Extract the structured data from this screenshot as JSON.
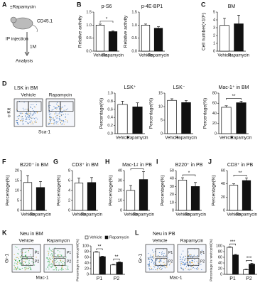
{
  "panel_labels": [
    "A",
    "B",
    "C",
    "D",
    "F",
    "G",
    "H",
    "I",
    "J",
    "K",
    "L"
  ],
  "diagram": {
    "treatment": "±Rapamycin",
    "strain": "CD45.1",
    "route": "IP injection",
    "duration": "1M",
    "endpoint": "Analysis"
  },
  "flow_plots": [
    {
      "title": "LSK in BM",
      "columns": [
        "Vehicle",
        "Rapamycin"
      ],
      "y_label": "c-Kit",
      "x_label": "Sca-1"
    },
    {
      "title": "Neu in BM",
      "columns": [
        "Vehicle",
        "Rapamycin"
      ],
      "y_label": "Gr-1",
      "x_label": "Mac-1",
      "gates": [
        "P1",
        "P2"
      ]
    },
    {
      "title": "Neu in PB",
      "columns": [
        "Vehicle",
        "Rapamycin"
      ],
      "y_label": "Gr-1",
      "x_label": "Mac-1",
      "gates": [
        "P1",
        "P2"
      ]
    }
  ],
  "chart_data": [
    {
      "type": "bar",
      "title": "p-S6",
      "ylabel": "Relative activity",
      "categories": [
        "Vehicle",
        "Rapamycin"
      ],
      "values": [
        1.0,
        0.75
      ],
      "errors": [
        0.04,
        0.03
      ],
      "colors": [
        "#ffffff",
        "#111111"
      ],
      "ylim": [
        0,
        1.5
      ],
      "yticks": [
        {
          "value": 0,
          "label": "0.0"
        },
        0.5,
        {
          "value": 1,
          "label": "1.0"
        },
        1.5
      ],
      "annotations": [
        "*"
      ]
    },
    {
      "type": "bar",
      "title": "p-4E-BP1",
      "ylabel": "Relative activity",
      "categories": [
        "Vehicle",
        "Rapamycin"
      ],
      "values": [
        1.0,
        0.88
      ],
      "errors": [
        0.04,
        0.06
      ],
      "colors": [
        "#ffffff",
        "#111111"
      ],
      "ylim": [
        0,
        1.5
      ],
      "yticks": [
        {
          "value": 0,
          "label": "0.0"
        },
        0.5,
        {
          "value": 1,
          "label": "1.0"
        },
        1.5
      ],
      "annotations": []
    },
    {
      "type": "bar",
      "title": "BM",
      "ylabel": "Cell number(×10⁶)",
      "categories": [
        "Vehicle",
        "Rapamycin"
      ],
      "values": [
        3.3,
        3.5
      ],
      "errors": [
        0.9,
        1.1
      ],
      "colors": [
        "#ffffff",
        "#111111"
      ],
      "ylim": [
        0,
        5
      ],
      "yticks": [
        0,
        1,
        2,
        3,
        4,
        5
      ],
      "annotations": []
    },
    {
      "type": "bar",
      "title": "LSK⁺",
      "ylabel": "Percentage(%)",
      "categories": [
        "Vehicle",
        "Rapamycin"
      ],
      "values": [
        0.72,
        0.66
      ],
      "errors": [
        0.08,
        0.1
      ],
      "colors": [
        "#ffffff",
        "#111111"
      ],
      "ylim": [
        0,
        1
      ],
      "yticks": [
        {
          "value": 0,
          "label": "0.0"
        },
        0.2,
        0.4,
        0.6,
        0.8,
        {
          "value": 1,
          "label": "1.0"
        }
      ],
      "annotations": []
    },
    {
      "type": "bar",
      "title": "LSK⁻",
      "ylabel": "Percentage(%)",
      "categories": [
        "Vehicle",
        "Rapamycin"
      ],
      "values": [
        12.3,
        11.5
      ],
      "errors": [
        0.6,
        0.7
      ],
      "colors": [
        "#ffffff",
        "#111111"
      ],
      "ylim": [
        0,
        15
      ],
      "yticks": [
        0,
        5,
        10,
        15
      ],
      "annotations": []
    },
    {
      "type": "bar",
      "title": "Mac-1⁺ in BM",
      "ylabel": "Percentage(%)",
      "categories": [
        "Vehicle",
        "Rapamycin"
      ],
      "values": [
        52,
        61
      ],
      "errors": [
        3,
        3
      ],
      "colors": [
        "#ffffff",
        "#111111"
      ],
      "ylim": [
        0,
        80
      ],
      "yticks": [
        0,
        20,
        40,
        60,
        80
      ],
      "annotations": [
        "**"
      ]
    },
    {
      "type": "bar",
      "title": "B220⁺ in BM",
      "ylabel": "Percentage(%)",
      "categories": [
        "Vehicle",
        "Rapamycin"
      ],
      "values": [
        14,
        11.5
      ],
      "errors": [
        3.5,
        3
      ],
      "colors": [
        "#ffffff",
        "#111111"
      ],
      "ylim": [
        0,
        20
      ],
      "yticks": [
        0,
        5,
        10,
        15,
        20
      ],
      "annotations": []
    },
    {
      "type": "bar",
      "title": "CD3⁺ in BM",
      "ylabel": "Percentage(%)",
      "categories": [
        "Vehicle",
        "Rapamycin"
      ],
      "values": [
        5.5,
        5.6
      ],
      "errors": [
        1,
        1
      ],
      "colors": [
        "#ffffff",
        "#111111"
      ],
      "ylim": [
        0,
        8
      ],
      "yticks": [
        0,
        2,
        4,
        6,
        8
      ],
      "annotations": []
    },
    {
      "type": "bar",
      "title": "Mac-1⁺ in PB",
      "ylabel": "Percentage(%)",
      "categories": [
        "Vehicle",
        "Rapamycin"
      ],
      "values": [
        20,
        31
      ],
      "errors": [
        5,
        8
      ],
      "colors": [
        "#ffffff",
        "#111111"
      ],
      "ylim": [
        0,
        40
      ],
      "yticks": [
        0,
        10,
        20,
        30,
        40
      ],
      "annotations": [
        "*"
      ]
    },
    {
      "type": "bar",
      "title": "B220⁺ in PB",
      "ylabel": "Percentage(%)",
      "categories": [
        "Vehicle",
        "Rapamycin"
      ],
      "values": [
        38,
        30
      ],
      "errors": [
        3,
        5
      ],
      "colors": [
        "#ffffff",
        "#111111"
      ],
      "ylim": [
        0,
        50
      ],
      "yticks": [
        0,
        10,
        20,
        30,
        40,
        50
      ],
      "annotations": [
        "*"
      ]
    },
    {
      "type": "bar",
      "title": "CD3⁺ in PB",
      "ylabel": "Percentage(%)",
      "categories": [
        "Vehicle",
        "Rapamycin"
      ],
      "values": [
        38,
        45
      ],
      "errors": [
        2,
        4
      ],
      "colors": [
        "#ffffff",
        "#111111"
      ],
      "ylim": [
        0,
        60
      ],
      "yticks": [
        0,
        20,
        40,
        60
      ],
      "annotations": [
        "**"
      ]
    },
    {
      "type": "grouped",
      "ylabel": "Percentage in neutrophil(%)",
      "categories": [
        "P1",
        "P2"
      ],
      "series": [
        {
          "name": "Vehicle",
          "color": "#ffffff",
          "values": [
            78,
            33
          ],
          "errors": [
            2,
            2
          ]
        },
        {
          "name": "Rapamycin",
          "color": "#111111",
          "values": [
            62,
            42
          ],
          "errors": [
            2,
            2
          ]
        }
      ],
      "ylim": [
        0,
        100
      ],
      "yticks": [
        0,
        20,
        40,
        60,
        80,
        100
      ],
      "annotations": [
        "**",
        "**"
      ],
      "legend": true
    },
    {
      "type": "grouped",
      "ylabel": "Percentage in neutrophil(%)",
      "categories": [
        "P1",
        "P2"
      ],
      "series": [
        {
          "name": "Vehicle",
          "color": "#ffffff",
          "values": [
            95,
            16
          ],
          "errors": [
            2,
            2
          ]
        },
        {
          "name": "Rapamycin",
          "color": "#111111",
          "values": [
            68,
            36
          ],
          "errors": [
            2,
            3
          ]
        }
      ],
      "ylim": [
        0,
        100
      ],
      "yticks": [
        0,
        20,
        40,
        60,
        80,
        100
      ],
      "annotations": [
        "***",
        "***"
      ],
      "legend": false
    }
  ]
}
